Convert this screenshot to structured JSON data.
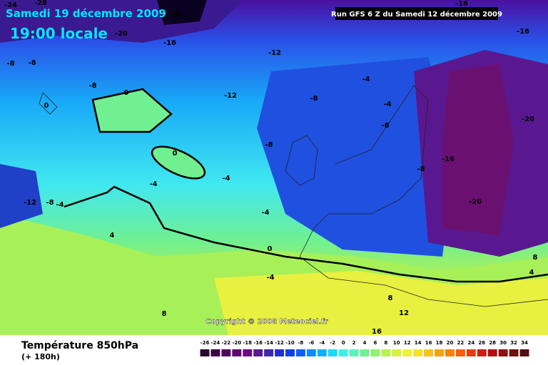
{
  "header": {
    "date": "Samedi 19 décembre 2009",
    "time": "19:00 locale"
  },
  "run": "Run GFS 6 Z du Samedi 12 décembre 2009",
  "copyright": "Copyright © 2008 Meteociel.fr",
  "footer": {
    "title": "Température 850hPa",
    "subtitle": "(+ 180h)"
  },
  "contour_labels": [
    -24,
    -28,
    -28,
    -20,
    -16,
    -12,
    -8,
    -8,
    -8,
    0,
    0,
    -12,
    -8,
    -4,
    -4,
    -8,
    -8,
    0,
    -4,
    -4,
    -12,
    -8,
    -4,
    -4,
    -8,
    -16,
    -20,
    -20,
    -16,
    -16,
    4,
    0,
    -4,
    8,
    4,
    8,
    8,
    12,
    16
  ],
  "scale": {
    "labels": [
      -26,
      -24,
      -22,
      -20,
      -18,
      -16,
      -14,
      -12,
      -10,
      -8,
      -6,
      -4,
      -2,
      0,
      2,
      4,
      6,
      8,
      10,
      12,
      14,
      16,
      18,
      20,
      22,
      24,
      26,
      28,
      30,
      32,
      34
    ],
    "colors": [
      "#2a0030",
      "#3c0046",
      "#50005c",
      "#640070",
      "#6e0a80",
      "#5a1890",
      "#3c28a8",
      "#2030c8",
      "#1040e0",
      "#1060f0",
      "#1088f8",
      "#10b0f8",
      "#20d8f8",
      "#40f0e8",
      "#60f0b8",
      "#70f090",
      "#90f070",
      "#b8f050",
      "#d8f040",
      "#f0f040",
      "#f8e030",
      "#f8c020",
      "#f8a018",
      "#f88010",
      "#f06010",
      "#e04010",
      "#c82010",
      "#b01010",
      "#901010",
      "#701010",
      "#501010"
    ]
  }
}
